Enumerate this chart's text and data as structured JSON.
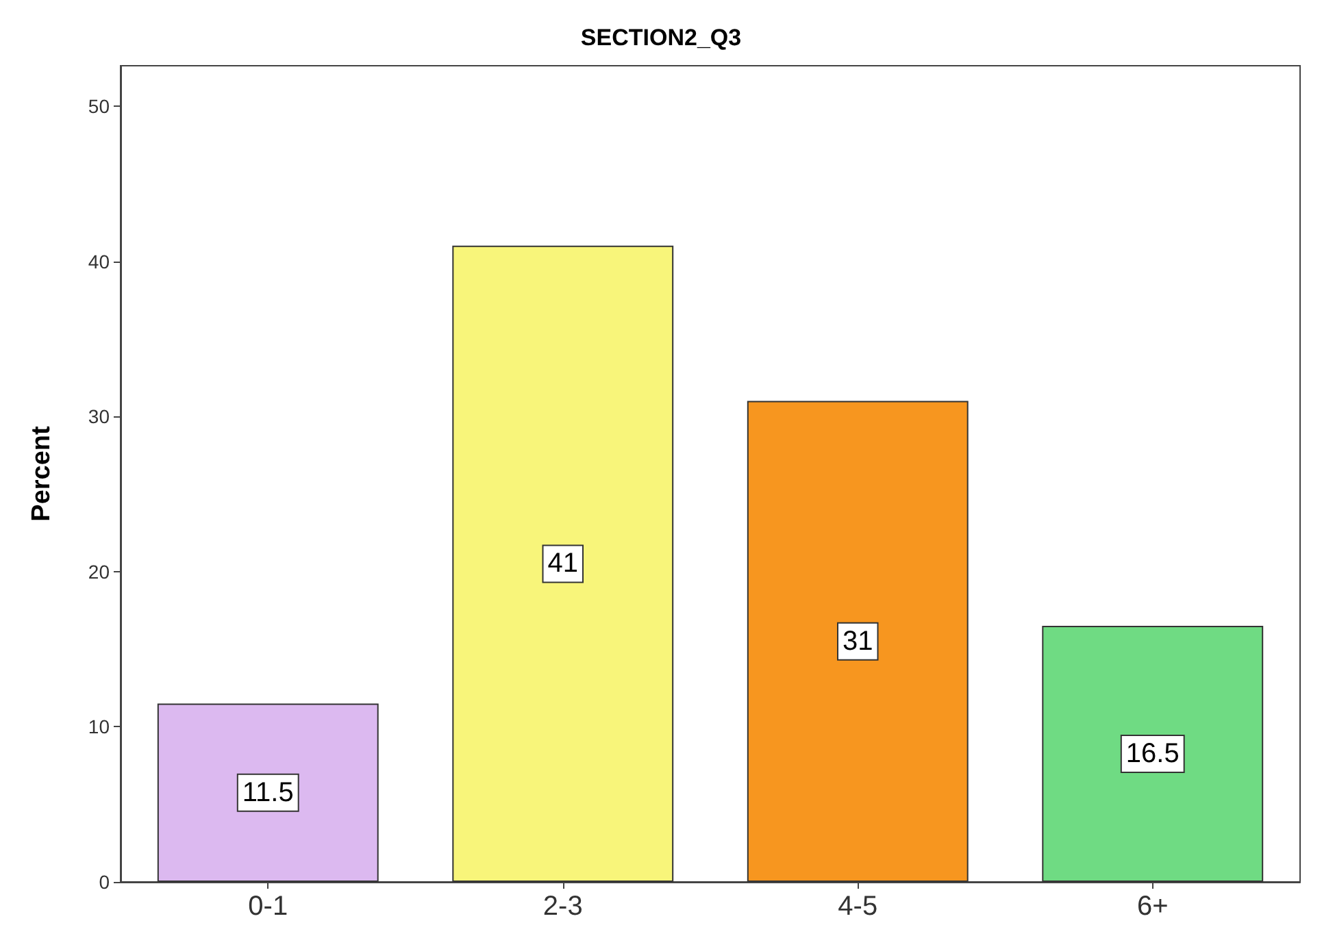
{
  "chart_data": {
    "type": "bar",
    "title": "SECTION2_Q3",
    "ylabel": "Percent",
    "categories": [
      "0-1",
      "2-3",
      "4-5",
      "6+"
    ],
    "values": [
      11.5,
      41,
      31,
      16.5
    ],
    "colors": [
      "#dcb9f0",
      "#f8f57a",
      "#f7961f",
      "#6fdb83"
    ],
    "ylim": [
      0,
      52.6
    ],
    "yticks": [
      0,
      10,
      20,
      30,
      40,
      50
    ],
    "data_labels": true
  }
}
